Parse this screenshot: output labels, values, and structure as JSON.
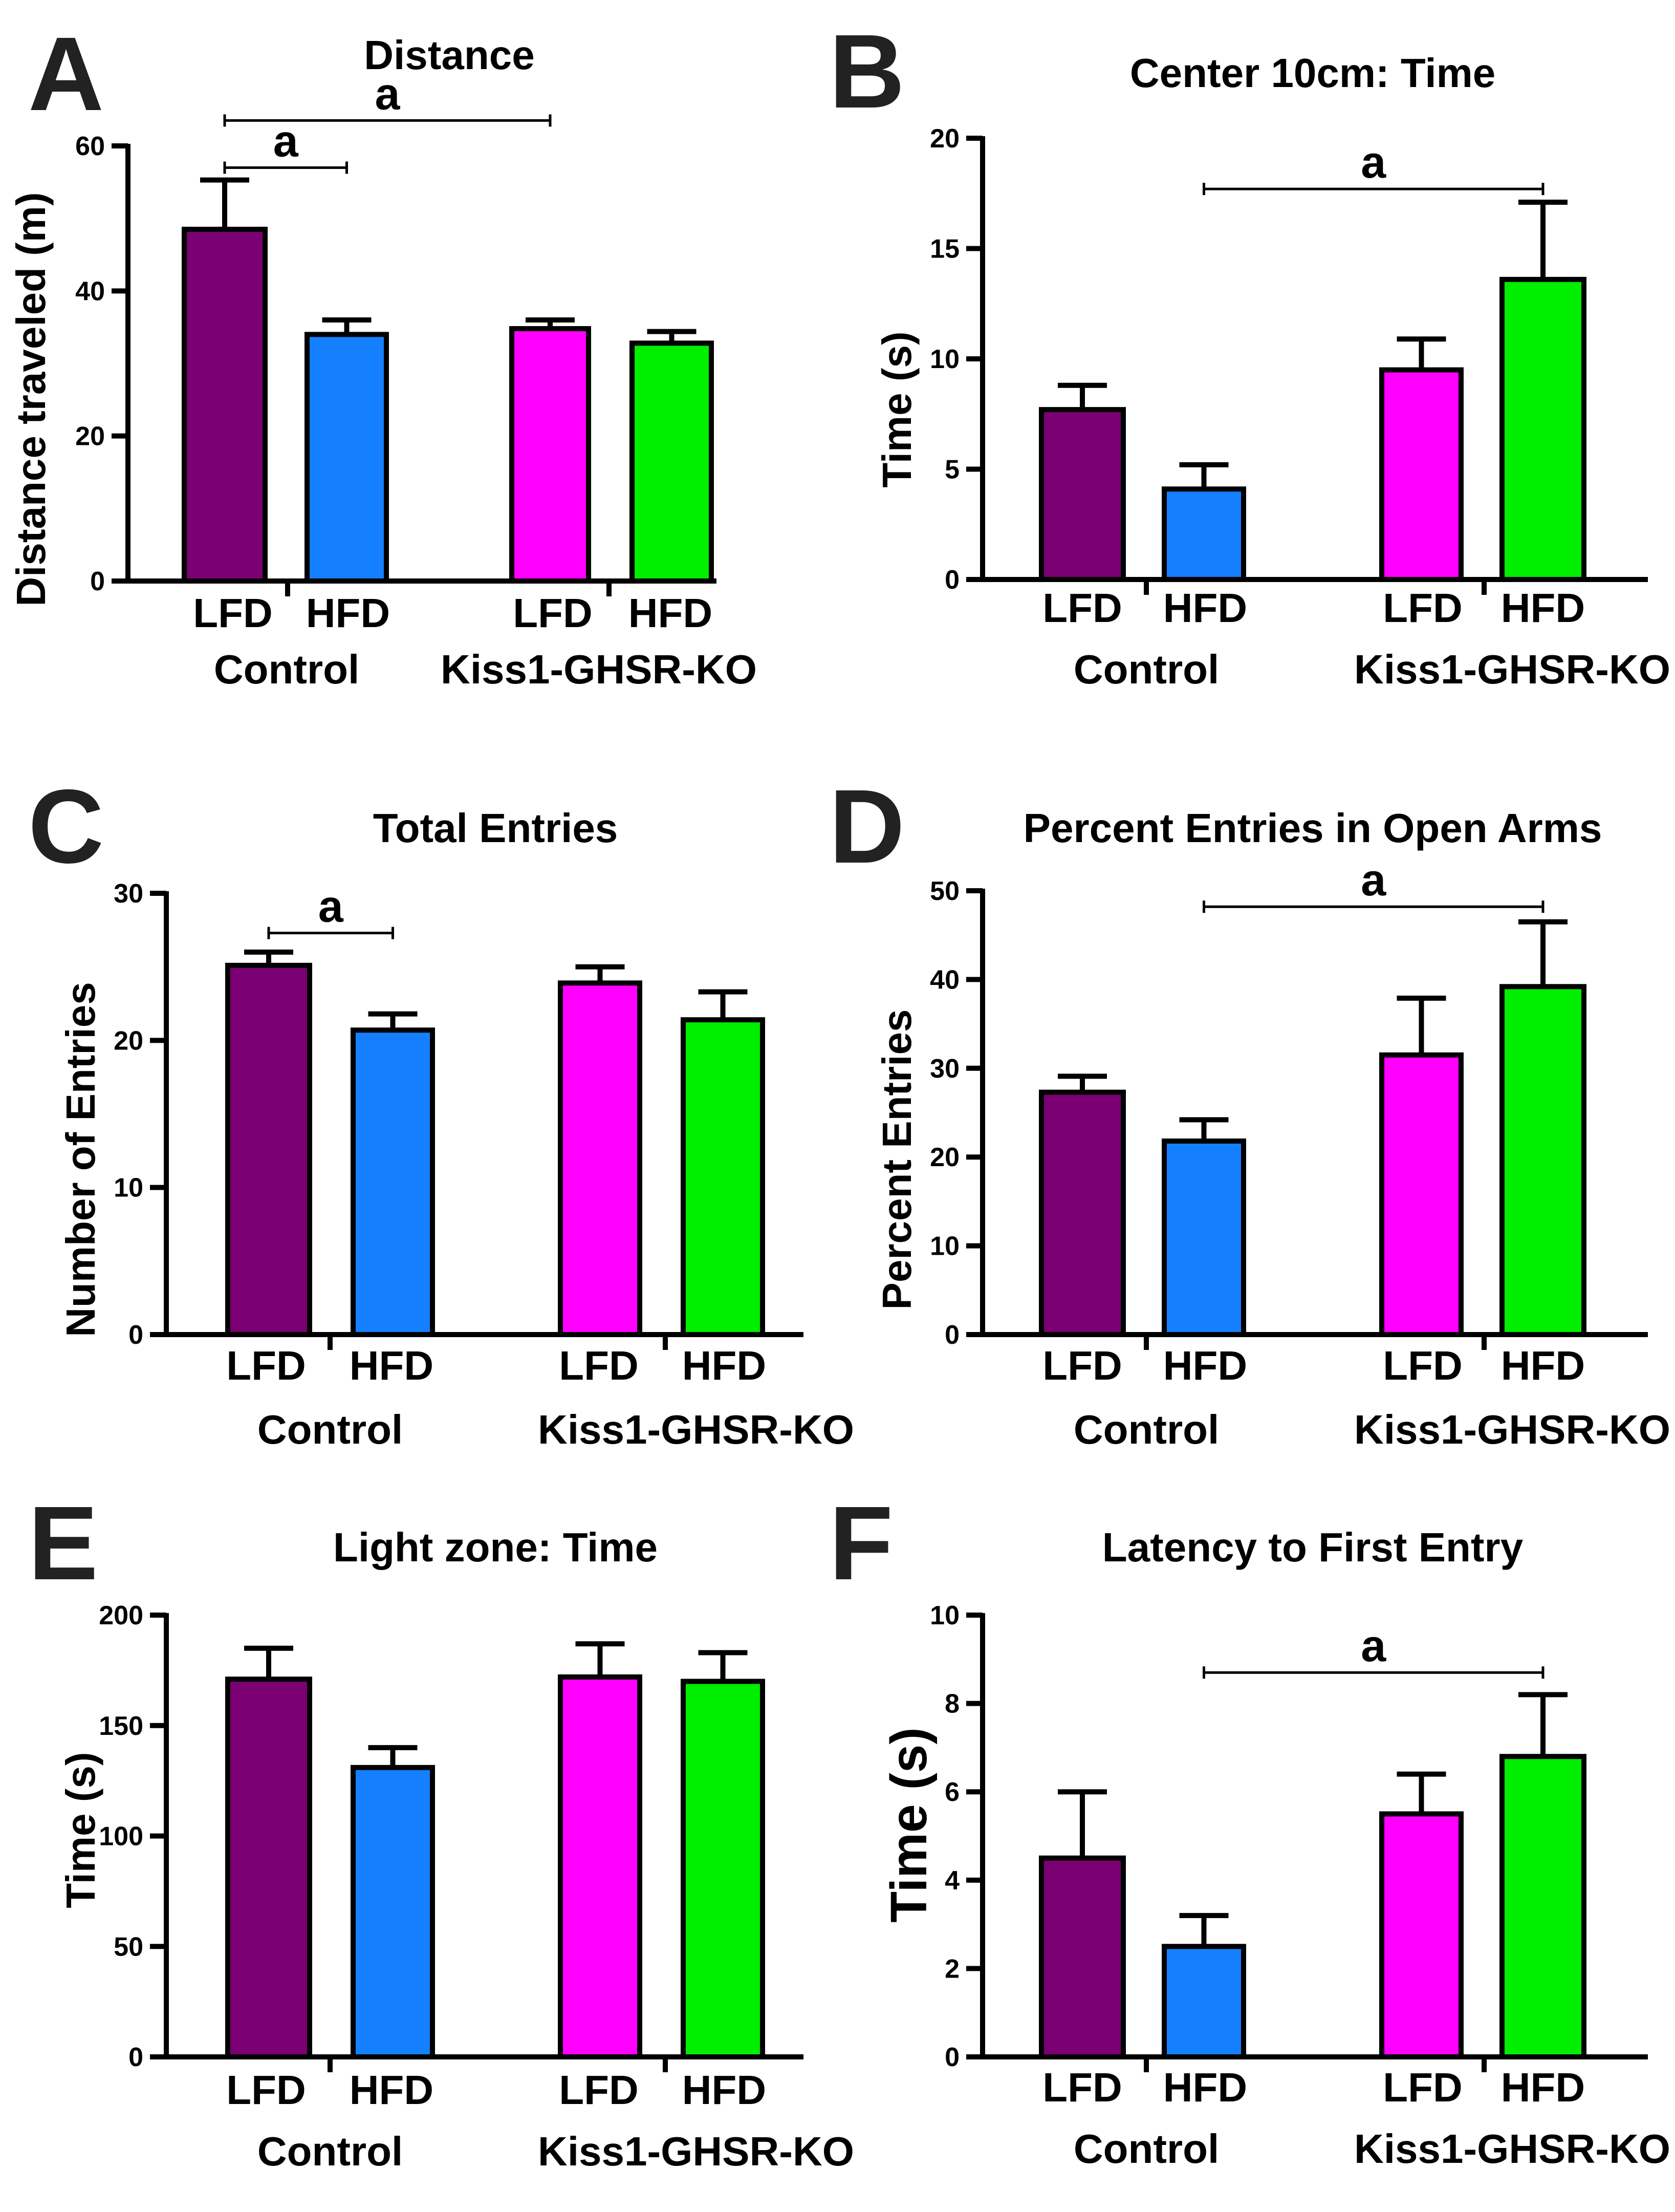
{
  "figure": {
    "panels_order": [
      "A",
      "B",
      "C",
      "D",
      "E",
      "F"
    ]
  },
  "colors": {
    "control_lfd": "#7b0073",
    "control_hfd": "#1580ff",
    "ko_lfd": "#ff00ff",
    "ko_hfd": "#00ee00",
    "axis": "#000000"
  },
  "chart_data": [
    {
      "panel": "A",
      "type": "bar",
      "title": "Distance",
      "ylabel": "Distance traveled  (m)",
      "ylim": [
        0,
        60
      ],
      "yticks": [
        0,
        20,
        40,
        60
      ],
      "categories": [
        "LFD",
        "HFD",
        "LFD",
        "HFD"
      ],
      "groups": [
        "Control",
        "Kiss1-GHSR-KO"
      ],
      "values": [
        48.5,
        34,
        34.8,
        32.8
      ],
      "errors": [
        6.8,
        2,
        1.2,
        1.6
      ],
      "significance": [
        {
          "from": 0,
          "to": 1,
          "label": "a",
          "y": 57
        },
        {
          "from": 0,
          "to": 2,
          "label": "a",
          "y": 63.5
        }
      ]
    },
    {
      "panel": "B",
      "type": "bar",
      "title": "Center 10cm: Time",
      "ylabel": "Time (s)",
      "ylim": [
        0,
        20
      ],
      "yticks": [
        0,
        5,
        10,
        15,
        20
      ],
      "categories": [
        "LFD",
        "HFD",
        "LFD",
        "HFD"
      ],
      "groups": [
        "Control",
        "Kiss1-GHSR-KO"
      ],
      "values": [
        7.7,
        4.1,
        9.5,
        13.6
      ],
      "errors": [
        1.1,
        1.1,
        1.4,
        3.5
      ],
      "significance": [
        {
          "from": 1,
          "to": 3,
          "label": "a",
          "y": 17.7
        }
      ]
    },
    {
      "panel": "C",
      "type": "bar",
      "title": "Total Entries",
      "ylabel": "Number of Entries",
      "ylim": [
        0,
        30
      ],
      "yticks": [
        0,
        10,
        20,
        30
      ],
      "categories": [
        "LFD",
        "HFD",
        "LFD",
        "HFD"
      ],
      "groups": [
        "Control",
        "Kiss1-GHSR-KO"
      ],
      "values": [
        25.1,
        20.7,
        23.9,
        21.4
      ],
      "errors": [
        0.9,
        1.1,
        1.1,
        1.9
      ],
      "significance": [
        {
          "from": 0,
          "to": 1,
          "label": "a",
          "y": 27.3
        }
      ]
    },
    {
      "panel": "D",
      "type": "bar",
      "title": "Percent Entries in Open Arms",
      "ylabel": "Percent Entries",
      "ylim": [
        0,
        50
      ],
      "yticks": [
        0,
        10,
        20,
        30,
        40,
        50
      ],
      "categories": [
        "LFD",
        "HFD",
        "LFD",
        "HFD"
      ],
      "groups": [
        "Control",
        "Kiss1-GHSR-KO"
      ],
      "values": [
        27.3,
        21.8,
        31.5,
        39.2
      ],
      "errors": [
        1.8,
        2.4,
        6.4,
        7.3
      ],
      "significance": [
        {
          "from": 1,
          "to": 3,
          "label": "a",
          "y": 48.2
        }
      ]
    },
    {
      "panel": "E",
      "type": "bar",
      "title": "Light zone: Time",
      "ylabel": "Time (s)",
      "ylim": [
        0,
        200
      ],
      "yticks": [
        0,
        50,
        100,
        150,
        200
      ],
      "categories": [
        "LFD",
        "HFD",
        "LFD",
        "HFD"
      ],
      "groups": [
        "Control",
        "Kiss1-GHSR-KO"
      ],
      "values": [
        171,
        131,
        172,
        170
      ],
      "errors": [
        14,
        9,
        15,
        13
      ],
      "significance": []
    },
    {
      "panel": "F",
      "type": "bar",
      "title": "Latency to First Entry",
      "ylabel": "Time (s)",
      "ylim": [
        0,
        10
      ],
      "yticks": [
        0,
        2,
        4,
        6,
        8,
        10
      ],
      "categories": [
        "LFD",
        "HFD",
        "LFD",
        "HFD"
      ],
      "groups": [
        "Control",
        "Kiss1-GHSR-KO"
      ],
      "values": [
        4.5,
        2.5,
        5.5,
        6.8
      ],
      "errors": [
        1.5,
        0.7,
        0.9,
        1.4
      ],
      "significance": [
        {
          "from": 1,
          "to": 3,
          "label": "a",
          "y": 8.7
        }
      ]
    }
  ]
}
